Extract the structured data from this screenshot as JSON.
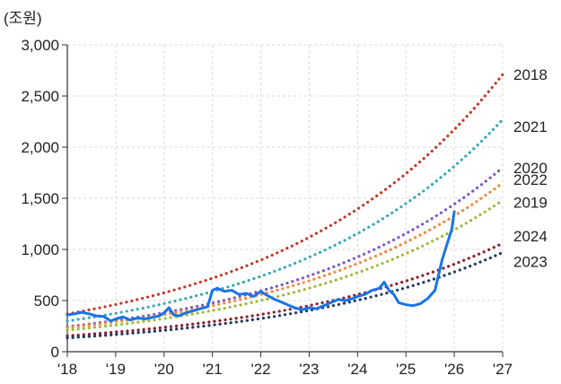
{
  "chart_data": {
    "type": "line",
    "unit_label": "(조원)",
    "xlim": [
      2018,
      2027
    ],
    "ylim": [
      0,
      3000
    ],
    "x_ticks": [
      {
        "value": 2018,
        "label": "'18"
      },
      {
        "value": 2019,
        "label": "'19"
      },
      {
        "value": 2020,
        "label": "'20"
      },
      {
        "value": 2021,
        "label": "'21"
      },
      {
        "value": 2022,
        "label": "'22"
      },
      {
        "value": 2023,
        "label": "'23"
      },
      {
        "value": 2024,
        "label": "'24"
      },
      {
        "value": 2025,
        "label": "'25"
      },
      {
        "value": 2026,
        "label": "'26"
      },
      {
        "value": 2027,
        "label": "'27"
      }
    ],
    "y_ticks": [
      {
        "value": 0,
        "label": "0"
      },
      {
        "value": 500,
        "label": "500"
      },
      {
        "value": 1000,
        "label": "1,000"
      },
      {
        "value": 1500,
        "label": "1,500"
      },
      {
        "value": 2000,
        "label": "2,000"
      },
      {
        "value": 2500,
        "label": "2,500"
      },
      {
        "value": 3000,
        "label": "3,000"
      }
    ],
    "grid": true,
    "trend_series": [
      {
        "name": "2018",
        "color": "#c0392b",
        "start": [
          2018.0,
          370
        ],
        "end": [
          2027.0,
          2710
        ]
      },
      {
        "name": "2021",
        "color": "#3aa6b9",
        "start": [
          2018.0,
          300
        ],
        "end": [
          2027.0,
          2270
        ]
      },
      {
        "name": "2020",
        "color": "#7e57c2",
        "start": [
          2018.0,
          245
        ],
        "end": [
          2027.0,
          1800
        ]
      },
      {
        "name": "2022",
        "color": "#f08a3c",
        "start": [
          2018.0,
          235
        ],
        "end": [
          2027.0,
          1650
        ]
      },
      {
        "name": "2019",
        "color": "#9bbb3a",
        "start": [
          2018.0,
          210
        ],
        "end": [
          2027.0,
          1480
        ]
      },
      {
        "name": "2024",
        "color": "#8b1e2d",
        "start": [
          2018.0,
          155
        ],
        "end": [
          2027.0,
          1060
        ]
      },
      {
        "name": "2023",
        "color": "#1f3a5f",
        "start": [
          2018.0,
          135
        ],
        "end": [
          2027.0,
          970
        ]
      }
    ],
    "actual_series": {
      "color": "#1a73e8",
      "points": [
        [
          2018.0,
          360
        ],
        [
          2018.15,
          370
        ],
        [
          2018.3,
          385
        ],
        [
          2018.45,
          370
        ],
        [
          2018.6,
          350
        ],
        [
          2018.75,
          345
        ],
        [
          2018.9,
          300
        ],
        [
          2019.0,
          320
        ],
        [
          2019.15,
          340
        ],
        [
          2019.3,
          310
        ],
        [
          2019.45,
          330
        ],
        [
          2019.6,
          320
        ],
        [
          2019.75,
          335
        ],
        [
          2019.9,
          350
        ],
        [
          2020.0,
          380
        ],
        [
          2020.1,
          430
        ],
        [
          2020.2,
          360
        ],
        [
          2020.3,
          350
        ],
        [
          2020.45,
          380
        ],
        [
          2020.6,
          400
        ],
        [
          2020.75,
          420
        ],
        [
          2020.9,
          440
        ],
        [
          2021.0,
          600
        ],
        [
          2021.1,
          620
        ],
        [
          2021.25,
          590
        ],
        [
          2021.4,
          600
        ],
        [
          2021.55,
          560
        ],
        [
          2021.7,
          570
        ],
        [
          2021.85,
          540
        ],
        [
          2022.0,
          590
        ],
        [
          2022.1,
          560
        ],
        [
          2022.25,
          520
        ],
        [
          2022.4,
          490
        ],
        [
          2022.55,
          460
        ],
        [
          2022.7,
          430
        ],
        [
          2022.85,
          410
        ],
        [
          2023.0,
          430
        ],
        [
          2023.15,
          420
        ],
        [
          2023.3,
          450
        ],
        [
          2023.45,
          480
        ],
        [
          2023.6,
          510
        ],
        [
          2023.75,
          500
        ],
        [
          2023.9,
          520
        ],
        [
          2024.0,
          540
        ],
        [
          2024.15,
          560
        ],
        [
          2024.3,
          600
        ],
        [
          2024.45,
          620
        ],
        [
          2024.55,
          680
        ],
        [
          2024.65,
          600
        ],
        [
          2024.75,
          560
        ],
        [
          2024.85,
          480
        ],
        [
          2025.0,
          460
        ],
        [
          2025.15,
          450
        ],
        [
          2025.3,
          470
        ],
        [
          2025.45,
          520
        ],
        [
          2025.6,
          600
        ],
        [
          2025.75,
          900
        ],
        [
          2025.85,
          1050
        ],
        [
          2025.95,
          1200
        ],
        [
          2026.0,
          1370
        ]
      ]
    }
  }
}
